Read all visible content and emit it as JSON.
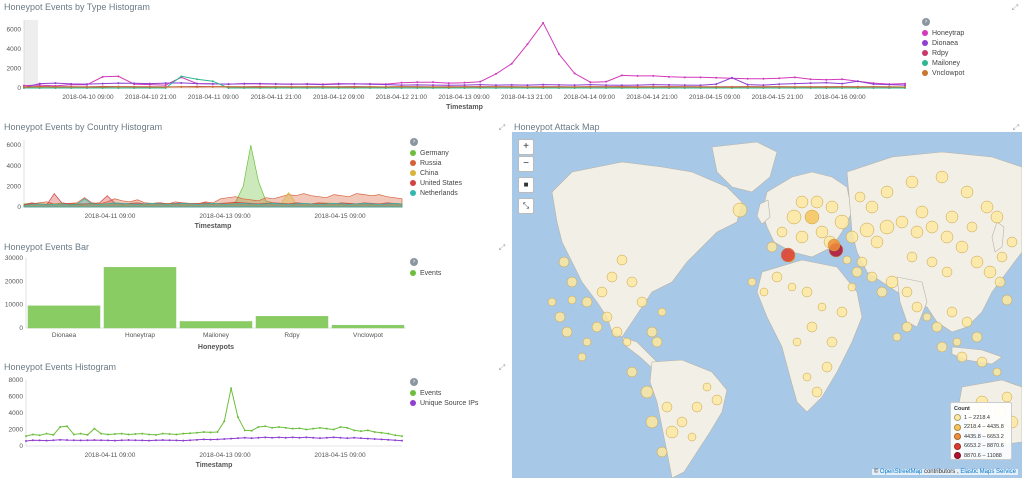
{
  "panels": {
    "type_hist": {
      "title": "Honeypot Events by Type Histogram",
      "x_title": "Timestamp",
      "y_ticks": [
        "6000",
        "4000",
        "2000",
        "0"
      ],
      "x_ticks": [
        "2018-04-10 09:00",
        "2018-04-10 21:00",
        "2018-04-11 09:00",
        "2018-04-11 21:00",
        "2018-04-12 09:00",
        "2018-04-12 21:00",
        "2018-04-13 09:00",
        "2018-04-13 21:00",
        "2018-04-14 09:00",
        "2018-04-14 21:00",
        "2018-04-15 09:00",
        "2018-04-15 21:00",
        "2018-04-16 09:00"
      ],
      "legend": [
        {
          "label": "Honeytrap",
          "color": "#d23ab9"
        },
        {
          "label": "Dionaea",
          "color": "#8e3fd1"
        },
        {
          "label": "Rdpy",
          "color": "#c8366a"
        },
        {
          "label": "Mailoney",
          "color": "#2fb88f"
        },
        {
          "label": "Vnclowpot",
          "color": "#c8752e"
        }
      ]
    },
    "country_hist": {
      "title": "Honeypot Events by Country Histogram",
      "x_title": "Timestamp",
      "y_ticks": [
        "6000",
        "4000",
        "2000",
        "0"
      ],
      "x_ticks": [
        "2018-04-11 09:00",
        "2018-04-13 09:00",
        "2018-04-15 09:00"
      ],
      "legend": [
        {
          "label": "Germany",
          "color": "#6cbf3c"
        },
        {
          "label": "Russia",
          "color": "#d6603a"
        },
        {
          "label": "China",
          "color": "#d9b43a"
        },
        {
          "label": "United States",
          "color": "#d14242"
        },
        {
          "label": "Netherlands",
          "color": "#33b8b0"
        }
      ]
    },
    "events_bar": {
      "title": "Honeypot Events Bar",
      "x_title": "Honeypots",
      "y_ticks": [
        "30000",
        "20000",
        "10000",
        "0"
      ],
      "legend": [
        {
          "label": "Events",
          "color": "#6cbf3c"
        }
      ]
    },
    "events_hist": {
      "title": "Honeypot Events Histogram",
      "x_title": "Timestamp",
      "y_ticks": [
        "8000",
        "6000",
        "4000",
        "2000",
        "0"
      ],
      "x_ticks": [
        "2018-04-11 09:00",
        "2018-04-13 09:00",
        "2018-04-15 09:00"
      ],
      "legend": [
        {
          "label": "Events",
          "color": "#6cbf3c"
        },
        {
          "label": "Unique Source IPs",
          "color": "#8e3fd1"
        }
      ]
    },
    "attack_map": {
      "title": "Honeypot Attack Map",
      "zoom_in": "+",
      "zoom_out": "−",
      "legend_title": "Count",
      "legend": [
        {
          "label": "1 – 2218.4",
          "color": "#fde9a0"
        },
        {
          "label": "2218.4 – 4435.8",
          "color": "#f7c45a"
        },
        {
          "label": "4435.8 – 6653.2",
          "color": "#ef8f3a"
        },
        {
          "label": "6653.2 – 8870.6",
          "color": "#de3c32"
        },
        {
          "label": "8870.6 – 11088",
          "color": "#b3102f"
        }
      ],
      "attribution_prefix": "©",
      "attribution_osm": "OpenStreetMap",
      "attribution_mid": " contributors ,",
      "attribution_ems": "Elastic Maps Service"
    }
  },
  "chart_data": [
    {
      "type": "line",
      "title": "Honeypot Events by Type Histogram",
      "xlabel": "Timestamp",
      "ylim": [
        0,
        7000
      ],
      "series": [
        {
          "name": "Honeytrap",
          "values": [
            250,
            300,
            220,
            350,
            330,
            1150,
            1200,
            400,
            350,
            300,
            1100,
            450,
            420,
            400,
            450,
            420,
            400,
            380,
            420,
            380,
            450,
            420,
            420,
            400,
            550,
            600,
            600,
            500,
            550,
            650,
            1450,
            2500,
            4500,
            6700,
            3500,
            1500,
            600,
            650,
            1300,
            1250,
            1250,
            1150,
            1100,
            1100,
            1050,
            1000,
            950,
            950,
            1000,
            1100,
            900,
            850,
            900,
            700,
            500,
            400,
            450
          ]
        },
        {
          "name": "Dionaea",
          "values": [
            50,
            450,
            500,
            420,
            400,
            450,
            500,
            480,
            450,
            500,
            520,
            450,
            420,
            400,
            430,
            450,
            420,
            400,
            380,
            350,
            400,
            420,
            380,
            350,
            300,
            320,
            300,
            280,
            300,
            350,
            300,
            320,
            300,
            350,
            320,
            300,
            350,
            300,
            280,
            300,
            350,
            320,
            300,
            280,
            400,
            1050,
            350,
            300,
            400,
            450,
            500,
            550,
            450,
            700,
            400,
            350,
            300
          ]
        },
        {
          "name": "Rdpy",
          "values": [
            100,
            150,
            120,
            130,
            110,
            150,
            140,
            130,
            120,
            110,
            130,
            150,
            140,
            120,
            130,
            140,
            120,
            130,
            110,
            120,
            130,
            140,
            120,
            110,
            130,
            120,
            110,
            130,
            120,
            140,
            130,
            120,
            110,
            130,
            120,
            110,
            120,
            130,
            140,
            120,
            130,
            140,
            120,
            110,
            130,
            120,
            140,
            130,
            120,
            110,
            130,
            120,
            140,
            130,
            120,
            110,
            100
          ]
        },
        {
          "name": "Mailoney",
          "values": [
            0,
            0,
            0,
            0,
            0,
            0,
            0,
            0,
            0,
            0,
            1200,
            900,
            700,
            0,
            0,
            0,
            0,
            0,
            0,
            0,
            0,
            0,
            0,
            0,
            0,
            0,
            0,
            0,
            0,
            0,
            0,
            0,
            0,
            0,
            0,
            0,
            0,
            0,
            0,
            0,
            0,
            0,
            0,
            0,
            0,
            0,
            0,
            0,
            0,
            0,
            0,
            0,
            0,
            0,
            0,
            0,
            0
          ]
        },
        {
          "name": "Vnclowpot",
          "values": [
            80,
            120,
            100,
            110,
            90,
            100,
            120,
            110,
            100,
            90,
            110,
            100,
            120,
            110,
            100,
            90,
            110,
            100,
            120,
            110,
            100,
            90,
            110,
            100,
            120,
            110,
            100,
            90,
            110,
            100,
            120,
            110,
            100,
            90,
            110,
            100,
            120,
            110,
            100,
            90,
            110,
            100,
            120,
            110,
            100,
            90,
            110,
            100,
            120,
            110,
            100,
            90,
            110,
            100,
            120,
            110,
            100
          ]
        }
      ]
    },
    {
      "type": "area",
      "title": "Honeypot Events by Country Histogram",
      "xlabel": "Timestamp",
      "ylim": [
        0,
        6500
      ],
      "series": [
        {
          "name": "Germany",
          "values": [
            300,
            350,
            300,
            280,
            320,
            300,
            350,
            320,
            300,
            280,
            300,
            320,
            350,
            330,
            300,
            280,
            300,
            320,
            300,
            350,
            300,
            320,
            340,
            300,
            280,
            300,
            320,
            300,
            500,
            2000,
            6000,
            2500,
            600,
            400,
            350,
            300,
            320,
            300,
            280,
            300,
            320,
            300,
            280,
            300,
            320,
            300,
            280,
            300,
            320,
            300,
            280
          ]
        },
        {
          "name": "Russia",
          "values": [
            200,
            300,
            400,
            500,
            300,
            250,
            350,
            400,
            900,
            400,
            300,
            500,
            800,
            600,
            500,
            700,
            400,
            350,
            400,
            300,
            500,
            400,
            350,
            300,
            500,
            400,
            800,
            900,
            1000,
            800,
            700,
            600,
            900,
            800,
            1000,
            1200,
            1100,
            1300,
            1100,
            1000,
            900,
            1200,
            1100,
            1000,
            1300,
            1200,
            1100,
            1200,
            1000,
            900,
            800
          ]
        },
        {
          "name": "China",
          "values": [
            150,
            200,
            250,
            200,
            300,
            400,
            300,
            200,
            250,
            300,
            350,
            300,
            250,
            200,
            300,
            250,
            200,
            300,
            250,
            350,
            300,
            250,
            200,
            300,
            350,
            300,
            250,
            300,
            400,
            350,
            300,
            250,
            400,
            300,
            350,
            1400,
            300,
            250,
            300,
            350,
            400,
            350,
            300,
            250,
            300,
            350,
            300,
            250,
            300,
            350,
            300
          ]
        },
        {
          "name": "United States",
          "values": [
            200,
            400,
            300,
            200,
            1300,
            400,
            300,
            250,
            300,
            350,
            400,
            1100,
            400,
            300,
            350,
            400,
            300,
            350,
            400,
            300,
            350,
            400,
            300,
            350,
            400,
            300,
            350,
            400,
            450,
            400,
            350,
            300,
            350,
            400,
            350,
            300,
            400,
            350,
            300,
            400,
            350,
            300,
            400,
            350,
            300,
            400,
            350,
            300,
            400,
            350,
            300
          ]
        },
        {
          "name": "Netherlands",
          "values": [
            100,
            250,
            300,
            200,
            250,
            300,
            200,
            250,
            800,
            300,
            250,
            300,
            400,
            350,
            300,
            250,
            300,
            350,
            300,
            250,
            300,
            350,
            300,
            250,
            300,
            350,
            300,
            250,
            300,
            350,
            300,
            250,
            300,
            350,
            300,
            250,
            300,
            350,
            300,
            250,
            300,
            350,
            300,
            250,
            300,
            350,
            300,
            250,
            300,
            350,
            300
          ]
        }
      ]
    },
    {
      "type": "bar",
      "title": "Honeypot Events Bar",
      "xlabel": "Honeypots",
      "ylim": [
        0,
        30000
      ],
      "categories": [
        "Dionaea",
        "Honeytrap",
        "Mailoney",
        "Rdpy",
        "Vnclowpot"
      ],
      "series": [
        {
          "name": "Events",
          "values": [
            9500,
            26000,
            2800,
            5000,
            1200
          ]
        }
      ]
    },
    {
      "type": "line",
      "title": "Honeypot Events Histogram",
      "xlabel": "Timestamp",
      "ylim": [
        0,
        8000
      ],
      "series": [
        {
          "name": "Events",
          "values": [
            1200,
            1400,
            1300,
            1500,
            1350,
            2300,
            2400,
            1400,
            1500,
            1350,
            2100,
            1500,
            1400,
            1450,
            1500,
            1400,
            1450,
            1500,
            1400,
            1350,
            1500,
            1450,
            1400,
            1500,
            1550,
            1600,
            1700,
            1650,
            1700,
            3000,
            7000,
            3500,
            1900,
            1850,
            2300,
            2400,
            2200,
            2300,
            2200,
            2100,
            2150,
            2000,
            2100,
            2200,
            2100,
            2000,
            2300,
            2200,
            1900,
            1800,
            1900,
            1700,
            1600,
            1500,
            1300,
            1200
          ]
        },
        {
          "name": "Unique Source IPs",
          "values": [
            600,
            700,
            680,
            650,
            700,
            750,
            720,
            700,
            680,
            700,
            720,
            700,
            680,
            650,
            700,
            720,
            700,
            680,
            650,
            700,
            720,
            700,
            680,
            650,
            700,
            750,
            800,
            780,
            800,
            850,
            900,
            950,
            1000,
            950,
            1000,
            1050,
            1000,
            1050,
            1000,
            1050,
            1000,
            1050,
            1000,
            950,
            1000,
            1050,
            1000,
            950,
            1000,
            950,
            900,
            850,
            800,
            750,
            700,
            650
          ]
        }
      ]
    }
  ]
}
